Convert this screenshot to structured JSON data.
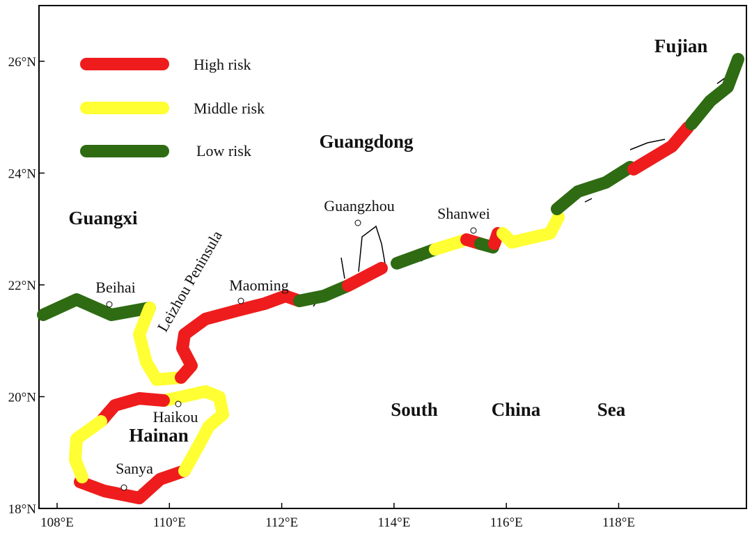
{
  "legend": {
    "items": [
      "High risk",
      "Middle risk",
      "Low risk"
    ]
  },
  "regions": {
    "fujian": "Fujian",
    "guangdong": "Guangdong",
    "guangxi": "Guangxi",
    "hainan": "Hainan",
    "leizhou": "Leizhou Peninsula"
  },
  "cities": {
    "beihai": "Beihai",
    "maoming": "Maoming",
    "guangzhou": "Guangzhou",
    "shanwei": "Shanwei",
    "haikou": "Haikou",
    "sanya": "Sanya"
  },
  "sea": [
    "South",
    "China",
    "Sea"
  ],
  "axes": {
    "x_labels": [
      "108°E",
      "110°E",
      "112°E",
      "114°E",
      "116°E",
      "118°E"
    ],
    "y_labels": [
      "26°N",
      "24°N",
      "22°N",
      "20°N",
      "18°N"
    ]
  }
}
